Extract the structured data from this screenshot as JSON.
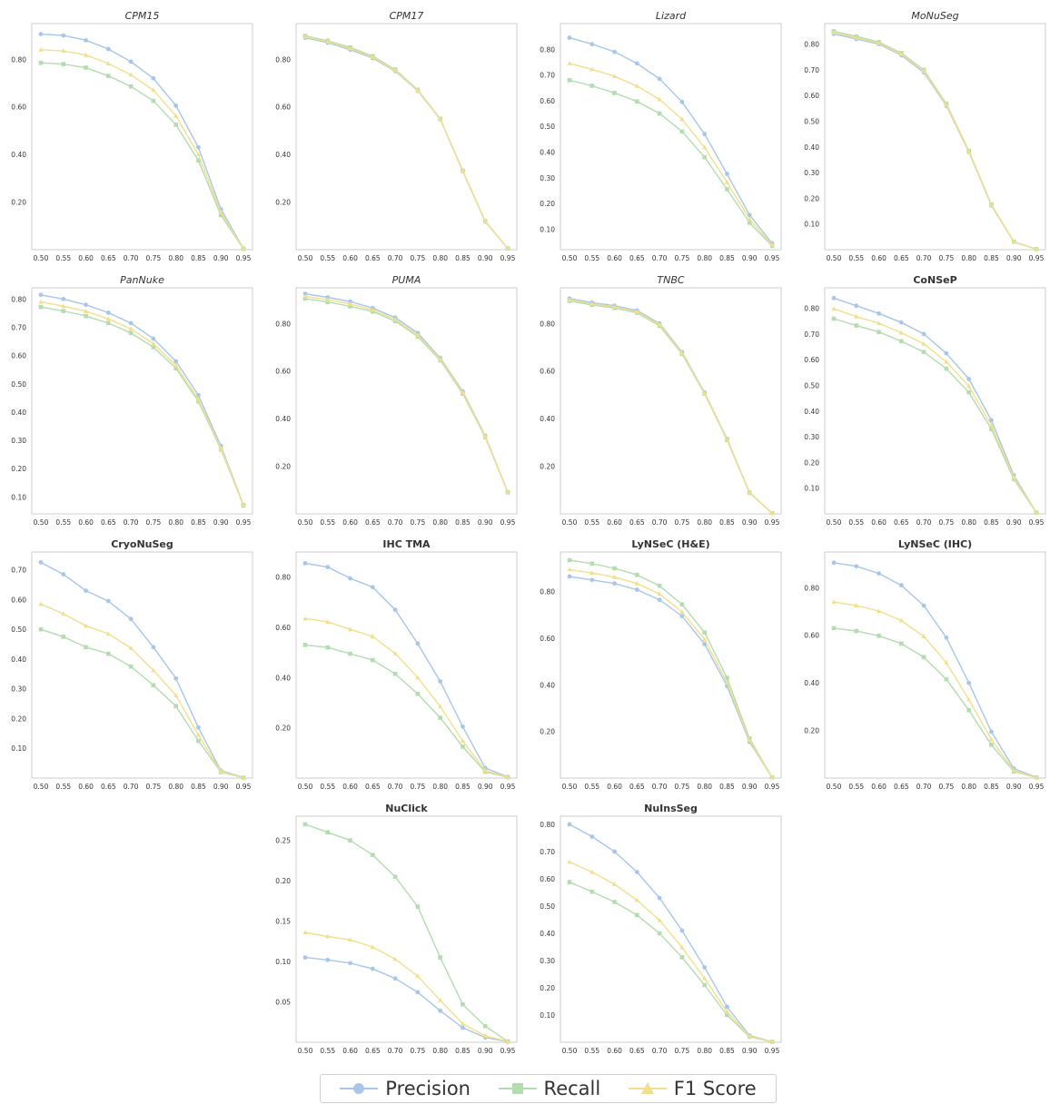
{
  "colors": {
    "precision": "#a7c6e9",
    "recall": "#b3dcb0",
    "f1": "#f2df8c",
    "axis": "#cccccc",
    "text": "#333333"
  },
  "legend": {
    "precision_label": "Precision",
    "recall_label": "Recall",
    "f1_label": "F1 Score",
    "precision_marker": "circle",
    "recall_marker": "square",
    "f1_marker": "triangle"
  },
  "chart_data": [
    {
      "type": "line",
      "title": "CPM15",
      "title_style": "italic",
      "x": [
        0.5,
        0.55,
        0.6,
        0.65,
        0.7,
        0.75,
        0.8,
        0.85,
        0.9,
        0.95
      ],
      "ylim": [
        0,
        0.95
      ],
      "yticks": [
        0.2,
        0.4,
        0.6,
        0.8
      ],
      "series": [
        {
          "name": "Precision",
          "values": [
            0.906,
            0.9,
            0.88,
            0.843,
            0.79,
            0.72,
            0.605,
            0.43,
            0.17,
            0.005
          ]
        },
        {
          "name": "Recall",
          "values": [
            0.785,
            0.78,
            0.765,
            0.73,
            0.686,
            0.625,
            0.525,
            0.375,
            0.145,
            0.003
          ]
        },
        {
          "name": "F1 Score",
          "values": [
            0.84,
            0.835,
            0.818,
            0.782,
            0.735,
            0.67,
            0.562,
            0.4,
            0.157,
            0.004
          ]
        }
      ]
    },
    {
      "type": "line",
      "title": "CPM17",
      "title_style": "italic",
      "x": [
        0.5,
        0.55,
        0.6,
        0.65,
        0.7,
        0.75,
        0.8,
        0.85,
        0.9,
        0.95
      ],
      "ylim": [
        0,
        0.95
      ],
      "yticks": [
        0.2,
        0.4,
        0.6,
        0.8
      ],
      "series": [
        {
          "name": "Precision",
          "values": [
            0.89,
            0.87,
            0.84,
            0.805,
            0.75,
            0.668,
            0.548,
            0.33,
            0.118,
            0.005
          ]
        },
        {
          "name": "Recall",
          "values": [
            0.898,
            0.878,
            0.85,
            0.813,
            0.757,
            0.672,
            0.55,
            0.332,
            0.12,
            0.005
          ]
        },
        {
          "name": "F1 Score",
          "values": [
            0.894,
            0.874,
            0.845,
            0.809,
            0.753,
            0.67,
            0.549,
            0.331,
            0.119,
            0.005
          ]
        }
      ]
    },
    {
      "type": "line",
      "title": "Lizard",
      "title_style": "italic",
      "x": [
        0.5,
        0.55,
        0.6,
        0.65,
        0.7,
        0.75,
        0.8,
        0.85,
        0.9,
        0.95
      ],
      "ylim": [
        0.02,
        0.9
      ],
      "yticks": [
        0.1,
        0.2,
        0.3,
        0.4,
        0.5,
        0.6,
        0.7,
        0.8
      ],
      "series": [
        {
          "name": "Precision",
          "values": [
            0.845,
            0.82,
            0.79,
            0.745,
            0.685,
            0.595,
            0.47,
            0.315,
            0.155,
            0.045
          ]
        },
        {
          "name": "Recall",
          "values": [
            0.68,
            0.658,
            0.63,
            0.597,
            0.55,
            0.48,
            0.38,
            0.255,
            0.125,
            0.035
          ]
        },
        {
          "name": "F1 Score",
          "values": [
            0.745,
            0.722,
            0.695,
            0.657,
            0.605,
            0.528,
            0.418,
            0.282,
            0.139,
            0.039
          ]
        }
      ]
    },
    {
      "type": "line",
      "title": "MoNuSeg",
      "title_style": "italic",
      "x": [
        0.5,
        0.55,
        0.6,
        0.65,
        0.7,
        0.75,
        0.8,
        0.85,
        0.9,
        0.95
      ],
      "ylim": [
        0,
        0.88
      ],
      "yticks": [
        0.1,
        0.2,
        0.3,
        0.4,
        0.5,
        0.6,
        0.7,
        0.8
      ],
      "series": [
        {
          "name": "Precision",
          "values": [
            0.84,
            0.82,
            0.8,
            0.757,
            0.69,
            0.56,
            0.38,
            0.172,
            0.03,
            0.002
          ]
        },
        {
          "name": "Recall",
          "values": [
            0.85,
            0.83,
            0.808,
            0.765,
            0.7,
            0.568,
            0.385,
            0.176,
            0.031,
            0.002
          ]
        },
        {
          "name": "F1 Score",
          "values": [
            0.845,
            0.825,
            0.804,
            0.761,
            0.695,
            0.564,
            0.382,
            0.174,
            0.03,
            0.002
          ]
        }
      ]
    },
    {
      "type": "line",
      "title": "PanNuke",
      "title_style": "italic",
      "x": [
        0.5,
        0.55,
        0.6,
        0.65,
        0.7,
        0.75,
        0.8,
        0.85,
        0.9,
        0.95
      ],
      "ylim": [
        0.04,
        0.84
      ],
      "yticks": [
        0.1,
        0.2,
        0.3,
        0.4,
        0.5,
        0.6,
        0.7,
        0.8
      ],
      "series": [
        {
          "name": "Precision",
          "values": [
            0.815,
            0.8,
            0.78,
            0.752,
            0.715,
            0.66,
            0.58,
            0.46,
            0.28,
            0.072
          ]
        },
        {
          "name": "Recall",
          "values": [
            0.772,
            0.758,
            0.74,
            0.715,
            0.68,
            0.63,
            0.555,
            0.438,
            0.268,
            0.07
          ]
        },
        {
          "name": "F1 Score",
          "values": [
            0.79,
            0.775,
            0.757,
            0.73,
            0.695,
            0.642,
            0.565,
            0.446,
            0.272,
            0.071
          ]
        }
      ]
    },
    {
      "type": "line",
      "title": "PUMA",
      "title_style": "italic",
      "x": [
        0.5,
        0.55,
        0.6,
        0.65,
        0.7,
        0.75,
        0.8,
        0.85,
        0.9,
        0.95
      ],
      "ylim": [
        0,
        0.95
      ],
      "yticks": [
        0.2,
        0.4,
        0.6,
        0.8
      ],
      "series": [
        {
          "name": "Precision",
          "values": [
            0.925,
            0.91,
            0.892,
            0.865,
            0.825,
            0.76,
            0.655,
            0.515,
            0.328,
            0.092
          ]
        },
        {
          "name": "Recall",
          "values": [
            0.905,
            0.89,
            0.872,
            0.85,
            0.81,
            0.745,
            0.645,
            0.505,
            0.322,
            0.09
          ]
        },
        {
          "name": "F1 Score",
          "values": [
            0.914,
            0.9,
            0.882,
            0.857,
            0.817,
            0.752,
            0.65,
            0.51,
            0.325,
            0.091
          ]
        }
      ]
    },
    {
      "type": "line",
      "title": "TNBC",
      "title_style": "italic",
      "x": [
        0.5,
        0.55,
        0.6,
        0.65,
        0.7,
        0.75,
        0.8,
        0.85,
        0.9,
        0.95
      ],
      "ylim": [
        0,
        0.95
      ],
      "yticks": [
        0.2,
        0.4,
        0.6,
        0.8
      ],
      "series": [
        {
          "name": "Precision",
          "values": [
            0.905,
            0.888,
            0.875,
            0.855,
            0.8,
            0.68,
            0.51,
            0.315,
            0.09,
            0.003
          ]
        },
        {
          "name": "Recall",
          "values": [
            0.895,
            0.878,
            0.865,
            0.845,
            0.79,
            0.672,
            0.505,
            0.31,
            0.088,
            0.003
          ]
        },
        {
          "name": "F1 Score",
          "values": [
            0.9,
            0.883,
            0.87,
            0.85,
            0.795,
            0.676,
            0.507,
            0.312,
            0.089,
            0.003
          ]
        }
      ]
    },
    {
      "type": "line",
      "title": "CoNSeP",
      "title_style": "bold",
      "x": [
        0.5,
        0.55,
        0.6,
        0.65,
        0.7,
        0.75,
        0.8,
        0.85,
        0.9,
        0.95
      ],
      "ylim": [
        0,
        0.88
      ],
      "yticks": [
        0.1,
        0.2,
        0.3,
        0.4,
        0.5,
        0.6,
        0.7,
        0.8
      ],
      "series": [
        {
          "name": "Precision",
          "values": [
            0.84,
            0.81,
            0.78,
            0.745,
            0.7,
            0.625,
            0.525,
            0.365,
            0.15,
            0.005
          ]
        },
        {
          "name": "Recall",
          "values": [
            0.76,
            0.733,
            0.708,
            0.672,
            0.63,
            0.565,
            0.473,
            0.33,
            0.135,
            0.004
          ]
        },
        {
          "name": "F1 Score",
          "values": [
            0.798,
            0.768,
            0.742,
            0.705,
            0.662,
            0.592,
            0.497,
            0.345,
            0.142,
            0.004
          ]
        }
      ]
    },
    {
      "type": "line",
      "title": "CryoNuSeg",
      "title_style": "bold",
      "x": [
        0.5,
        0.55,
        0.6,
        0.65,
        0.7,
        0.75,
        0.8,
        0.85,
        0.9,
        0.95
      ],
      "ylim": [
        0,
        0.76
      ],
      "yticks": [
        0.1,
        0.2,
        0.3,
        0.4,
        0.5,
        0.6,
        0.7
      ],
      "series": [
        {
          "name": "Precision",
          "values": [
            0.725,
            0.685,
            0.63,
            0.595,
            0.535,
            0.44,
            0.335,
            0.17,
            0.025,
            0.002
          ]
        },
        {
          "name": "Recall",
          "values": [
            0.5,
            0.475,
            0.44,
            0.418,
            0.375,
            0.312,
            0.242,
            0.125,
            0.02,
            0.001
          ]
        },
        {
          "name": "F1 Score",
          "values": [
            0.585,
            0.552,
            0.512,
            0.485,
            0.437,
            0.362,
            0.278,
            0.145,
            0.022,
            0.001
          ]
        }
      ]
    },
    {
      "type": "line",
      "title": "IHC TMA",
      "title_style": "bold",
      "x": [
        0.5,
        0.55,
        0.6,
        0.65,
        0.7,
        0.75,
        0.8,
        0.85,
        0.9,
        0.95
      ],
      "ylim": [
        0,
        0.9
      ],
      "yticks": [
        0.2,
        0.4,
        0.6,
        0.8
      ],
      "series": [
        {
          "name": "Precision",
          "values": [
            0.855,
            0.84,
            0.795,
            0.76,
            0.67,
            0.535,
            0.385,
            0.205,
            0.04,
            0.005
          ]
        },
        {
          "name": "Recall",
          "values": [
            0.53,
            0.52,
            0.495,
            0.47,
            0.415,
            0.335,
            0.24,
            0.125,
            0.025,
            0.003
          ]
        },
        {
          "name": "F1 Score",
          "values": [
            0.635,
            0.622,
            0.592,
            0.564,
            0.496,
            0.4,
            0.285,
            0.148,
            0.03,
            0.004
          ]
        }
      ]
    },
    {
      "type": "line",
      "title": "LyNSeC (H&E)",
      "title_style": "bold",
      "x": [
        0.5,
        0.55,
        0.6,
        0.65,
        0.7,
        0.75,
        0.8,
        0.85,
        0.9,
        0.95
      ],
      "ylim": [
        0,
        0.97
      ],
      "yticks": [
        0.2,
        0.4,
        0.6,
        0.8
      ],
      "series": [
        {
          "name": "Precision",
          "values": [
            0.865,
            0.85,
            0.835,
            0.808,
            0.765,
            0.695,
            0.575,
            0.395,
            0.155,
            0.003
          ]
        },
        {
          "name": "Recall",
          "values": [
            0.935,
            0.92,
            0.9,
            0.872,
            0.825,
            0.745,
            0.625,
            0.43,
            0.17,
            0.003
          ]
        },
        {
          "name": "F1 Score",
          "values": [
            0.895,
            0.88,
            0.862,
            0.835,
            0.79,
            0.713,
            0.595,
            0.41,
            0.162,
            0.003
          ]
        }
      ]
    },
    {
      "type": "line",
      "title": "LyNSeC (IHC)",
      "title_style": "bold",
      "x": [
        0.5,
        0.55,
        0.6,
        0.65,
        0.7,
        0.75,
        0.8,
        0.85,
        0.9,
        0.95
      ],
      "ylim": [
        0,
        0.95
      ],
      "yticks": [
        0.2,
        0.4,
        0.6,
        0.8
      ],
      "series": [
        {
          "name": "Precision",
          "values": [
            0.905,
            0.89,
            0.86,
            0.81,
            0.725,
            0.59,
            0.4,
            0.195,
            0.04,
            0.003
          ]
        },
        {
          "name": "Recall",
          "values": [
            0.63,
            0.618,
            0.598,
            0.565,
            0.508,
            0.415,
            0.285,
            0.14,
            0.028,
            0.002
          ]
        },
        {
          "name": "F1 Score",
          "values": [
            0.74,
            0.725,
            0.702,
            0.662,
            0.595,
            0.485,
            0.33,
            0.162,
            0.032,
            0.002
          ]
        }
      ]
    },
    {
      "type": "line",
      "title": "NuClick",
      "title_style": "bold",
      "x": [
        0.5,
        0.55,
        0.6,
        0.65,
        0.7,
        0.75,
        0.8,
        0.85,
        0.9,
        0.95
      ],
      "ylim": [
        0,
        0.28
      ],
      "yticks": [
        0.05,
        0.1,
        0.15,
        0.2,
        0.25
      ],
      "series": [
        {
          "name": "Precision",
          "values": [
            0.105,
            0.102,
            0.098,
            0.091,
            0.079,
            0.062,
            0.039,
            0.018,
            0.006,
            0.0008
          ]
        },
        {
          "name": "Recall",
          "values": [
            0.27,
            0.26,
            0.25,
            0.232,
            0.205,
            0.168,
            0.105,
            0.047,
            0.02,
            0.001
          ]
        },
        {
          "name": "F1 Score",
          "values": [
            0.136,
            0.131,
            0.127,
            0.118,
            0.103,
            0.082,
            0.052,
            0.023,
            0.008,
            0.001
          ]
        }
      ]
    },
    {
      "type": "line",
      "title": "NuInsSeg",
      "title_style": "bold",
      "x": [
        0.5,
        0.55,
        0.6,
        0.65,
        0.7,
        0.75,
        0.8,
        0.85,
        0.9,
        0.95
      ],
      "ylim": [
        0,
        0.83
      ],
      "yticks": [
        0.1,
        0.2,
        0.3,
        0.4,
        0.5,
        0.6,
        0.7,
        0.8
      ],
      "series": [
        {
          "name": "Precision",
          "values": [
            0.8,
            0.755,
            0.7,
            0.625,
            0.53,
            0.41,
            0.275,
            0.13,
            0.025,
            0.002
          ]
        },
        {
          "name": "Recall",
          "values": [
            0.588,
            0.553,
            0.515,
            0.467,
            0.4,
            0.312,
            0.21,
            0.1,
            0.02,
            0.001
          ]
        },
        {
          "name": "F1 Score",
          "values": [
            0.662,
            0.625,
            0.58,
            0.522,
            0.448,
            0.348,
            0.235,
            0.112,
            0.022,
            0.001
          ]
        }
      ]
    }
  ]
}
